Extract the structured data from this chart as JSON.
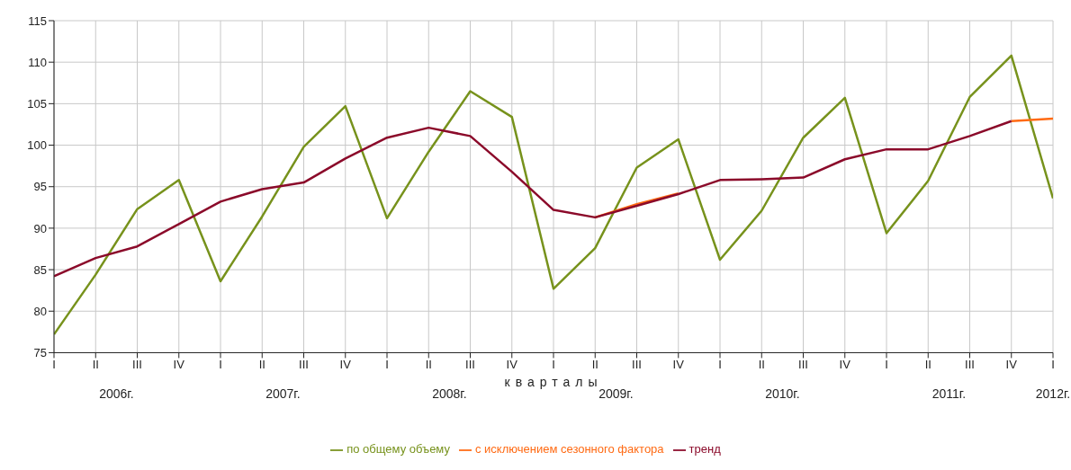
{
  "chart_data": {
    "type": "line",
    "xlabel": "кварталы",
    "categories": [
      "I",
      "II",
      "III",
      "IV",
      "I",
      "II",
      "III",
      "IV",
      "I",
      "II",
      "III",
      "IV",
      "I",
      "II",
      "III",
      "IV",
      "I",
      "II",
      "III",
      "IV",
      "I",
      "II",
      "III",
      "IV",
      "I"
    ],
    "series": [
      {
        "name": "по общему объему",
        "color": "#77921c",
        "values": [
          77.2,
          84.4,
          92.3,
          95.8,
          83.6,
          91.4,
          99.8,
          104.7,
          91.2,
          99.2,
          106.5,
          103.4,
          82.7,
          87.6,
          97.3,
          100.7,
          86.2,
          92.1,
          100.9,
          105.7,
          89.4,
          95.7,
          105.8,
          110.8,
          93.6
        ]
      },
      {
        "name": "с исключением сезонного фактора",
        "color": "#ff6a13",
        "values": [
          null,
          null,
          null,
          null,
          null,
          null,
          null,
          null,
          null,
          null,
          null,
          null,
          null,
          91.3,
          92.9,
          94.2,
          null,
          null,
          null,
          null,
          null,
          null,
          null,
          102.9,
          103.2
        ]
      },
      {
        "name": "тренд",
        "color": "#8b0a2a",
        "values": [
          84.2,
          86.4,
          87.8,
          90.5,
          93.2,
          94.7,
          95.5,
          98.4,
          100.9,
          102.1,
          101.1,
          96.8,
          92.2,
          91.3,
          92.7,
          94.1,
          95.8,
          95.9,
          96.1,
          98.3,
          99.5,
          99.5,
          101.1,
          102.9,
          null
        ]
      }
    ],
    "ylim": [
      75,
      115
    ],
    "yticks": [
      75,
      80,
      85,
      90,
      95,
      100,
      105,
      110,
      115
    ],
    "grid": true,
    "legend": "bottom",
    "annotations": [
      "2006г.",
      "2007г.",
      "2008г.",
      "2009г.",
      "2010г.",
      "2011г.",
      "2012г."
    ]
  }
}
